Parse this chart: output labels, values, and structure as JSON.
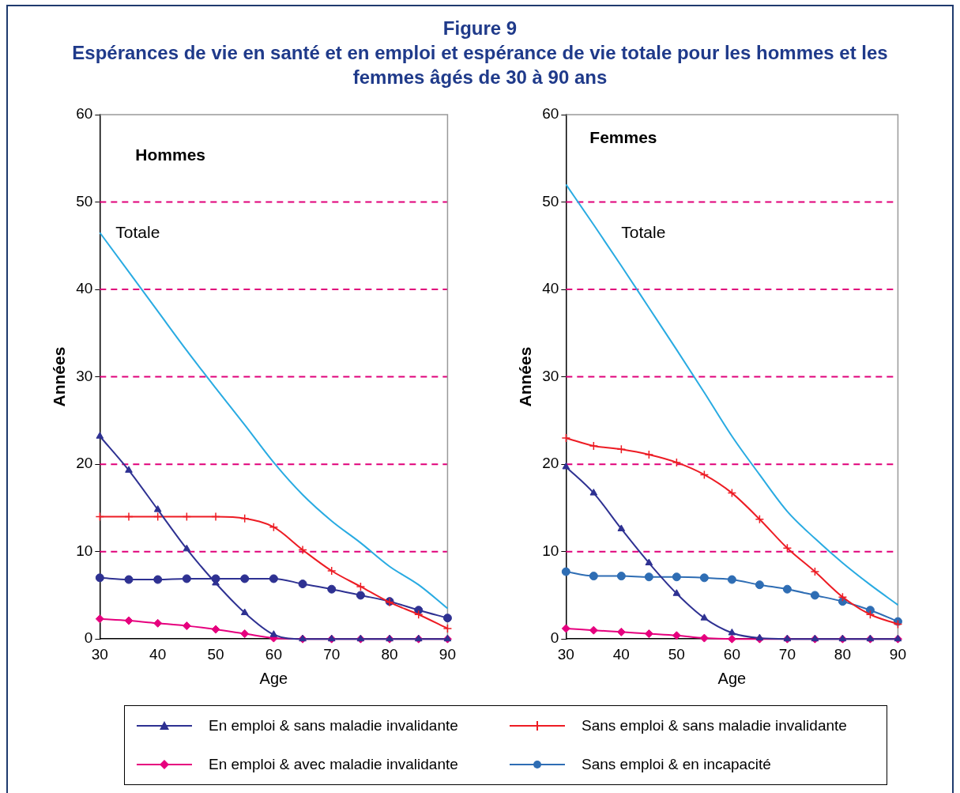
{
  "chart_data": [
    {
      "type": "line",
      "title": "Figure 9",
      "subtitle": "Espérances de vie en santé et en emploi et espérance de vie totale pour les hommes et les femmes âgés de 30 à 90 ans",
      "xlabel": "Age",
      "ylabel": "Années",
      "xlim": [
        30,
        90
      ],
      "xticks": [
        30,
        40,
        50,
        60,
        70,
        80,
        90
      ],
      "ylim": [
        0,
        60
      ],
      "yticks": [
        0,
        10,
        20,
        30,
        40,
        50,
        60
      ],
      "annotations": [
        "Hommes",
        "Totale"
      ],
      "x": [
        30,
        35,
        40,
        45,
        50,
        55,
        60,
        65,
        70,
        75,
        80,
        85,
        90
      ],
      "ref_lines": [
        {
          "axis": "y",
          "value": 10,
          "color": "#e0007a",
          "line_style": "dashed"
        },
        {
          "axis": "y",
          "value": 20,
          "color": "#e0007a",
          "line_style": "dashed"
        },
        {
          "axis": "y",
          "value": 30,
          "color": "#e0007a",
          "line_style": "dashed"
        },
        {
          "axis": "y",
          "value": 40,
          "color": "#e0007a",
          "line_style": "dashed"
        },
        {
          "axis": "y",
          "value": 50,
          "color": "#e0007a",
          "line_style": "dashed"
        }
      ],
      "series": [
        {
          "color": "#29abe2",
          "marker": "none",
          "values": [
            46.5,
            42,
            37.5,
            33,
            28.7,
            24.5,
            20.2,
            16.5,
            13.5,
            11,
            8.3,
            6.2,
            3.5
          ]
        },
        {
          "color": "#2e3192",
          "marker": "triangle",
          "values": [
            23.2,
            19.3,
            14.8,
            10.3,
            6.4,
            3.0,
            0.5,
            0,
            0,
            0,
            0,
            0,
            0
          ]
        },
        {
          "color": "#ed1c24",
          "marker": "cross",
          "values": [
            14,
            14,
            14,
            14,
            14,
            13.8,
            12.8,
            10.2,
            7.8,
            6.0,
            4.2,
            2.8,
            1.2
          ]
        },
        {
          "color": "#e6007e",
          "marker": "diamond",
          "values": [
            2.3,
            2.1,
            1.8,
            1.5,
            1.1,
            0.6,
            0.1,
            0,
            0,
            0,
            0,
            0,
            0
          ]
        },
        {
          "color": "#2e3192",
          "marker": "circle",
          "values": [
            7.0,
            6.8,
            6.8,
            6.9,
            6.9,
            6.9,
            6.9,
            6.3,
            5.7,
            5.0,
            4.3,
            3.3,
            2.4
          ]
        }
      ]
    },
    {
      "type": "line",
      "xlabel": "Age",
      "ylabel": "Années",
      "xlim": [
        30,
        90
      ],
      "xticks": [
        30,
        40,
        50,
        60,
        70,
        80,
        90
      ],
      "ylim": [
        0,
        60
      ],
      "yticks": [
        0,
        10,
        20,
        30,
        40,
        50,
        60
      ],
      "legend": "bottom",
      "annotations": [
        "Femmes",
        "Totale"
      ],
      "x": [
        30,
        35,
        40,
        45,
        50,
        55,
        60,
        65,
        70,
        75,
        80,
        85,
        90
      ],
      "ref_lines": [
        {
          "axis": "y",
          "value": 10,
          "color": "#e0007a",
          "line_style": "dashed"
        },
        {
          "axis": "y",
          "value": 20,
          "color": "#e0007a",
          "line_style": "dashed"
        },
        {
          "axis": "y",
          "value": 30,
          "color": "#e0007a",
          "line_style": "dashed"
        },
        {
          "axis": "y",
          "value": 40,
          "color": "#e0007a",
          "line_style": "dashed"
        },
        {
          "axis": "y",
          "value": 50,
          "color": "#e0007a",
          "line_style": "dashed"
        }
      ],
      "series": [
        {
          "color": "#29abe2",
          "marker": "none",
          "values": [
            52.0,
            47.4,
            42.7,
            37.9,
            33.1,
            28.2,
            23.2,
            18.8,
            14.6,
            11.5,
            8.7,
            6.2,
            3.9
          ]
        },
        {
          "name": "En emploi & sans maladie invalidante",
          "color": "#2e3192",
          "marker": "triangle",
          "values": [
            19.7,
            16.7,
            12.6,
            8.7,
            5.2,
            2.4,
            0.7,
            0.1,
            0,
            0,
            0,
            0,
            0
          ]
        },
        {
          "name": "Sans emploi & sans maladie invalidante",
          "color": "#ed1c24",
          "marker": "cross",
          "values": [
            23.0,
            22.1,
            21.7,
            21.1,
            20.2,
            18.8,
            16.7,
            13.7,
            10.4,
            7.7,
            4.8,
            2.8,
            1.7
          ]
        },
        {
          "name": "En emploi & avec maladie invalidante",
          "color": "#e6007e",
          "marker": "diamond",
          "values": [
            1.2,
            1.0,
            0.8,
            0.6,
            0.4,
            0.1,
            0,
            0,
            0,
            0,
            0,
            0,
            0
          ]
        },
        {
          "name": "Sans emploi & en incapacité",
          "color": "#2e6db4",
          "marker": "circle",
          "values": [
            7.7,
            7.2,
            7.2,
            7.1,
            7.1,
            7.0,
            6.8,
            6.2,
            5.7,
            5.0,
            4.3,
            3.3,
            2.0
          ]
        }
      ]
    }
  ]
}
